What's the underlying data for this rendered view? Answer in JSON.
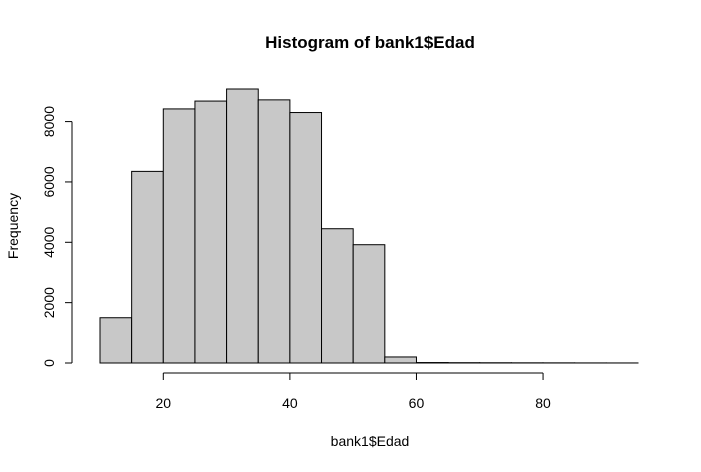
{
  "chart_data": {
    "type": "bar",
    "title": "Histogram of bank1$Edad",
    "xlabel": "bank1$Edad",
    "ylabel": "Frequency",
    "bin_edges": [
      10,
      15,
      20,
      25,
      30,
      35,
      40,
      45,
      50,
      55,
      60,
      65,
      70,
      75,
      80,
      85,
      90,
      95
    ],
    "values": [
      1500,
      6350,
      8420,
      8680,
      9080,
      8720,
      8300,
      4450,
      3920,
      200,
      15,
      10,
      8,
      6,
      5,
      3,
      2
    ],
    "xlim": [
      10,
      95
    ],
    "ylim": [
      0,
      9080
    ],
    "x_ticks": [
      20,
      40,
      60,
      80
    ],
    "y_ticks": [
      0,
      2000,
      4000,
      6000,
      8000
    ],
    "x_tick_labels": [
      "20",
      "40",
      "60",
      "80"
    ],
    "y_tick_labels": [
      "0",
      "2000",
      "4000",
      "6000",
      "8000"
    ],
    "fill_color": "#c8c8c8",
    "edge_color": "#000000",
    "grid": false,
    "legend": "none"
  }
}
